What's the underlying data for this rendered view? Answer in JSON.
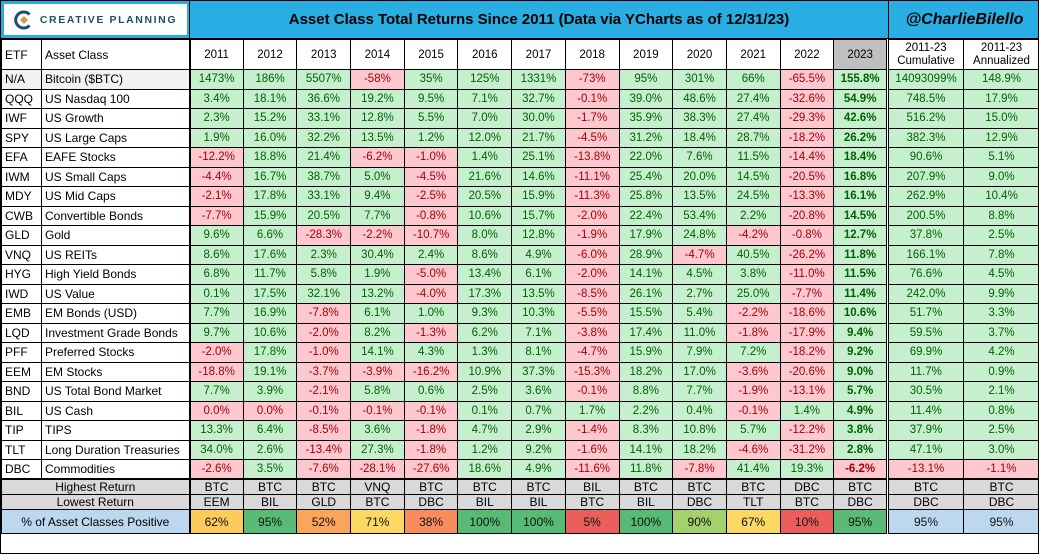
{
  "header": {
    "logo_text": "CREATIVE PLANNING",
    "title": "Asset Class Total Returns Since 2011 (Data via YCharts as of 12/31/23)",
    "handle": "@CharlieBilello",
    "columns": {
      "etf": "ETF",
      "asset_class": "Asset Class",
      "years": [
        "2011",
        "2012",
        "2013",
        "2014",
        "2015",
        "2016",
        "2017",
        "2018",
        "2019",
        "2020",
        "2021",
        "2022",
        "2023"
      ],
      "cumulative": [
        "2011-23",
        "Cumulative"
      ],
      "annualized": [
        "2011-23",
        "Annualized"
      ]
    }
  },
  "colors": {
    "positive_bg": "#C6EFCE",
    "positive_text": "#006100",
    "negative_bg": "#FFC7CE",
    "negative_text": "#9C0006",
    "header_cyan": "#29AEE3",
    "year2023_header_bg": "#BFBFBF",
    "footer_gray": "#D9D9D9",
    "footer_blue": "#BDD7EE",
    "bitcoin_label_bg": "#F2F2F2"
  },
  "chart_data": {
    "type": "table",
    "rows": [
      {
        "etf": "N/A",
        "name": "Bitcoin ($BTC)",
        "highlight": true,
        "values": [
          "1473%",
          "186%",
          "5507%",
          "-58%",
          "35%",
          "125%",
          "1331%",
          "-73%",
          "95%",
          "301%",
          "66%",
          "-65.5%",
          "155.8%"
        ],
        "cumulative": "14093099%",
        "annualized": "148.9%"
      },
      {
        "etf": "QQQ",
        "name": "US Nasdaq 100",
        "values": [
          "3.4%",
          "18.1%",
          "36.6%",
          "19.2%",
          "9.5%",
          "7.1%",
          "32.7%",
          "-0.1%",
          "39.0%",
          "48.6%",
          "27.4%",
          "-32.6%",
          "54.9%"
        ],
        "cumulative": "748.5%",
        "annualized": "17.9%"
      },
      {
        "etf": "IWF",
        "name": "US Growth",
        "values": [
          "2.3%",
          "15.2%",
          "33.1%",
          "12.8%",
          "5.5%",
          "7.0%",
          "30.0%",
          "-1.7%",
          "35.9%",
          "38.3%",
          "27.4%",
          "-29.3%",
          "42.6%"
        ],
        "cumulative": "516.2%",
        "annualized": "15.0%"
      },
      {
        "etf": "SPY",
        "name": "US Large Caps",
        "values": [
          "1.9%",
          "16.0%",
          "32.2%",
          "13.5%",
          "1.2%",
          "12.0%",
          "21.7%",
          "-4.5%",
          "31.2%",
          "18.4%",
          "28.7%",
          "-18.2%",
          "26.2%"
        ],
        "cumulative": "382.3%",
        "annualized": "12.9%"
      },
      {
        "etf": "EFA",
        "name": "EAFE Stocks",
        "values": [
          "-12.2%",
          "18.8%",
          "21.4%",
          "-6.2%",
          "-1.0%",
          "1.4%",
          "25.1%",
          "-13.8%",
          "22.0%",
          "7.6%",
          "11.5%",
          "-14.4%",
          "18.4%"
        ],
        "cumulative": "90.6%",
        "annualized": "5.1%"
      },
      {
        "etf": "IWM",
        "name": "US Small Caps",
        "values": [
          "-4.4%",
          "16.7%",
          "38.7%",
          "5.0%",
          "-4.5%",
          "21.6%",
          "14.6%",
          "-11.1%",
          "25.4%",
          "20.0%",
          "14.5%",
          "-20.5%",
          "16.8%"
        ],
        "cumulative": "207.9%",
        "annualized": "9.0%"
      },
      {
        "etf": "MDY",
        "name": "US Mid Caps",
        "values": [
          "-2.1%",
          "17.8%",
          "33.1%",
          "9.4%",
          "-2.5%",
          "20.5%",
          "15.9%",
          "-11.3%",
          "25.8%",
          "13.5%",
          "24.5%",
          "-13.3%",
          "16.1%"
        ],
        "cumulative": "262.9%",
        "annualized": "10.4%"
      },
      {
        "etf": "CWB",
        "name": "Convertible Bonds",
        "values": [
          "-7.7%",
          "15.9%",
          "20.5%",
          "7.7%",
          "-0.8%",
          "10.6%",
          "15.7%",
          "-2.0%",
          "22.4%",
          "53.4%",
          "2.2%",
          "-20.8%",
          "14.5%"
        ],
        "cumulative": "200.5%",
        "annualized": "8.8%"
      },
      {
        "etf": "GLD",
        "name": "Gold",
        "values": [
          "9.6%",
          "6.6%",
          "-28.3%",
          "-2.2%",
          "-10.7%",
          "8.0%",
          "12.8%",
          "-1.9%",
          "17.9%",
          "24.8%",
          "-4.2%",
          "-0.8%",
          "12.7%"
        ],
        "cumulative": "37.8%",
        "annualized": "2.5%"
      },
      {
        "etf": "VNQ",
        "name": "US REITs",
        "values": [
          "8.6%",
          "17.6%",
          "2.3%",
          "30.4%",
          "2.4%",
          "8.6%",
          "4.9%",
          "-6.0%",
          "28.9%",
          "-4.7%",
          "40.5%",
          "-26.2%",
          "11.8%"
        ],
        "cumulative": "166.1%",
        "annualized": "7.8%"
      },
      {
        "etf": "HYG",
        "name": "High Yield Bonds",
        "values": [
          "6.8%",
          "11.7%",
          "5.8%",
          "1.9%",
          "-5.0%",
          "13.4%",
          "6.1%",
          "-2.0%",
          "14.1%",
          "4.5%",
          "3.8%",
          "-11.0%",
          "11.5%"
        ],
        "cumulative": "76.6%",
        "annualized": "4.5%"
      },
      {
        "etf": "IWD",
        "name": "US Value",
        "values": [
          "0.1%",
          "17.5%",
          "32.1%",
          "13.2%",
          "-4.0%",
          "17.3%",
          "13.5%",
          "-8.5%",
          "26.1%",
          "2.7%",
          "25.0%",
          "-7.7%",
          "11.4%"
        ],
        "cumulative": "242.0%",
        "annualized": "9.9%"
      },
      {
        "etf": "EMB",
        "name": "EM Bonds (USD)",
        "values": [
          "7.7%",
          "16.9%",
          "-7.8%",
          "6.1%",
          "1.0%",
          "9.3%",
          "10.3%",
          "-5.5%",
          "15.5%",
          "5.4%",
          "-2.2%",
          "-18.6%",
          "10.6%"
        ],
        "cumulative": "51.7%",
        "annualized": "3.3%"
      },
      {
        "etf": "LQD",
        "name": "Investment Grade Bonds",
        "values": [
          "9.7%",
          "10.6%",
          "-2.0%",
          "8.2%",
          "-1.3%",
          "6.2%",
          "7.1%",
          "-3.8%",
          "17.4%",
          "11.0%",
          "-1.8%",
          "-17.9%",
          "9.4%"
        ],
        "cumulative": "59.5%",
        "annualized": "3.7%"
      },
      {
        "etf": "PFF",
        "name": "Preferred Stocks",
        "values": [
          "-2.0%",
          "17.8%",
          "-1.0%",
          "14.1%",
          "4.3%",
          "1.3%",
          "8.1%",
          "-4.7%",
          "15.9%",
          "7.9%",
          "7.2%",
          "-18.2%",
          "9.2%"
        ],
        "cumulative": "69.9%",
        "annualized": "4.2%"
      },
      {
        "etf": "EEM",
        "name": "EM Stocks",
        "values": [
          "-18.8%",
          "19.1%",
          "-3.7%",
          "-3.9%",
          "-16.2%",
          "10.9%",
          "37.3%",
          "-15.3%",
          "18.2%",
          "17.0%",
          "-3.6%",
          "-20.6%",
          "9.0%"
        ],
        "cumulative": "11.7%",
        "annualized": "0.9%"
      },
      {
        "etf": "BND",
        "name": "US Total Bond Market",
        "values": [
          "7.7%",
          "3.9%",
          "-2.1%",
          "5.8%",
          "0.6%",
          "2.5%",
          "3.6%",
          "-0.1%",
          "8.8%",
          "7.7%",
          "-1.9%",
          "-13.1%",
          "5.7%"
        ],
        "cumulative": "30.5%",
        "annualized": "2.1%"
      },
      {
        "etf": "BIL",
        "name": "US Cash",
        "values": [
          "0.0%",
          "0.0%",
          "-0.1%",
          "-0.1%",
          "-0.1%",
          "0.1%",
          "0.7%",
          "1.7%",
          "2.2%",
          "0.4%",
          "-0.1%",
          "1.4%",
          "4.9%"
        ],
        "cumulative": "11.4%",
        "annualized": "0.8%"
      },
      {
        "etf": "TIP",
        "name": "TIPS",
        "values": [
          "13.3%",
          "6.4%",
          "-8.5%",
          "3.6%",
          "-1.8%",
          "4.7%",
          "2.9%",
          "-1.4%",
          "8.3%",
          "10.8%",
          "5.7%",
          "-12.2%",
          "3.8%"
        ],
        "cumulative": "37.9%",
        "annualized": "2.5%"
      },
      {
        "etf": "TLT",
        "name": "Long Duration Treasuries",
        "values": [
          "34.0%",
          "2.6%",
          "-13.4%",
          "27.3%",
          "-1.8%",
          "1.2%",
          "9.2%",
          "-1.6%",
          "14.1%",
          "18.2%",
          "-4.6%",
          "-31.2%",
          "2.8%"
        ],
        "cumulative": "47.1%",
        "annualized": "3.0%"
      },
      {
        "etf": "DBC",
        "name": "Commodities",
        "values": [
          "-2.6%",
          "3.5%",
          "-7.6%",
          "-28.1%",
          "-27.6%",
          "18.6%",
          "4.9%",
          "-11.6%",
          "11.8%",
          "-7.8%",
          "41.4%",
          "19.3%",
          "-6.2%"
        ],
        "cumulative": "-13.1%",
        "annualized": "-1.1%"
      }
    ],
    "summary": {
      "highest": {
        "label": "Highest Return",
        "years": [
          "BTC",
          "BTC",
          "BTC",
          "VNQ",
          "BTC",
          "BTC",
          "BTC",
          "BIL",
          "BTC",
          "BTC",
          "BTC",
          "DBC",
          "BTC"
        ],
        "cumulative": "BTC",
        "annualized": "BTC"
      },
      "lowest": {
        "label": "Lowest Return",
        "years": [
          "EEM",
          "BIL",
          "GLD",
          "BTC",
          "DBC",
          "BIL",
          "BIL",
          "BTC",
          "BIL",
          "DBC",
          "TLT",
          "BTC",
          "DBC"
        ],
        "cumulative": "DBC",
        "annualized": "DBC"
      },
      "percent_positive": {
        "label": "% of Asset Classes Positive",
        "years": [
          {
            "v": "62%",
            "bg": "#FBCB5E"
          },
          {
            "v": "95%",
            "bg": "#5ABB76"
          },
          {
            "v": "52%",
            "bg": "#F9A65C"
          },
          {
            "v": "71%",
            "bg": "#FBD964"
          },
          {
            "v": "38%",
            "bg": "#F78D5C"
          },
          {
            "v": "100%",
            "bg": "#57BB76"
          },
          {
            "v": "100%",
            "bg": "#57BB76"
          },
          {
            "v": "5%",
            "bg": "#EA5E5C"
          },
          {
            "v": "100%",
            "bg": "#57BB76"
          },
          {
            "v": "90%",
            "bg": "#A4D16E"
          },
          {
            "v": "67%",
            "bg": "#FBD964"
          },
          {
            "v": "10%",
            "bg": "#EA5E5C"
          },
          {
            "v": "95%",
            "bg": "#5ABB76"
          }
        ],
        "cumulative": {
          "v": "95%",
          "bg": "#BDD7EE"
        },
        "annualized": {
          "v": "95%",
          "bg": "#BDD7EE"
        }
      }
    }
  }
}
